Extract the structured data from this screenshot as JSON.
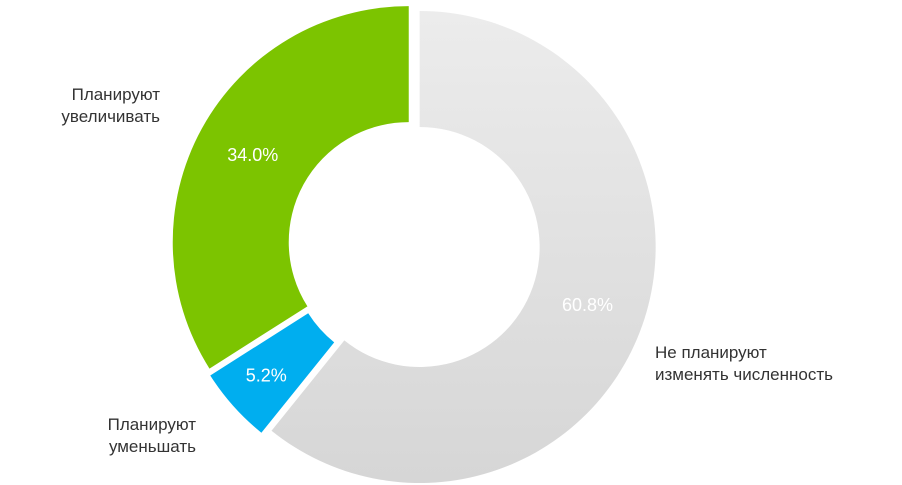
{
  "chart_data": {
    "type": "donut",
    "categories": [
      "Не планируют\nизменять численность",
      "Планируют\nуменьшать",
      "Планируют\nувеличивать"
    ],
    "values": [
      60.8,
      5.2,
      34.0
    ],
    "value_labels": [
      "60.8%",
      "5.2%",
      "34.0%"
    ],
    "colors": [
      "#e2e2e2",
      "#00aeef",
      "#7cc400"
    ]
  }
}
